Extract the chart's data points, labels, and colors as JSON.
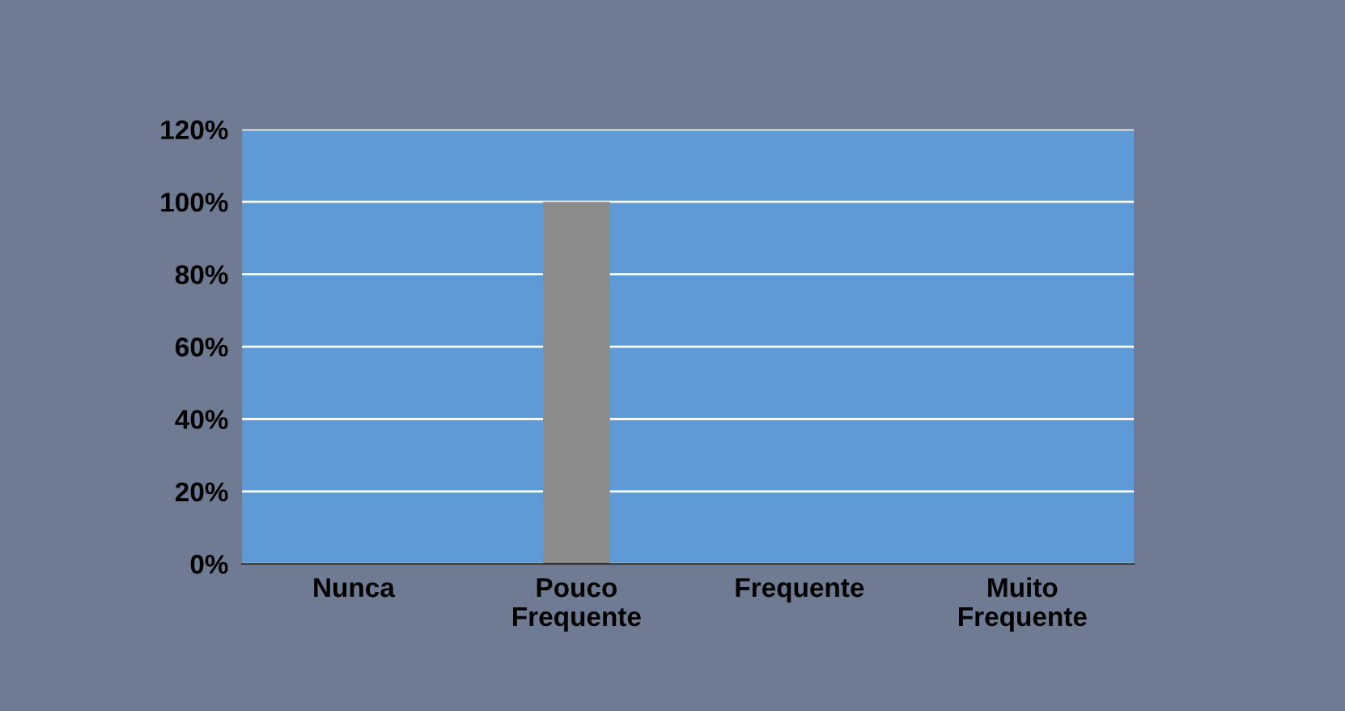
{
  "chart_data": {
    "type": "bar",
    "categories": [
      "Nunca",
      "Pouco\nFrequente",
      "Frequente",
      "Muito\nFrequente"
    ],
    "values": [
      0,
      100,
      0,
      0
    ],
    "color": "#8c8c8c",
    "ylim": [
      0,
      120
    ],
    "yticks": [
      {
        "value": 0,
        "label": "0%"
      },
      {
        "value": 20,
        "label": "20%"
      },
      {
        "value": 40,
        "label": "40%"
      },
      {
        "value": 60,
        "label": "60%"
      },
      {
        "value": 80,
        "label": "80%"
      },
      {
        "value": 100,
        "label": "100%"
      },
      {
        "value": 120,
        "label": "120%"
      }
    ],
    "grid": "y"
  }
}
